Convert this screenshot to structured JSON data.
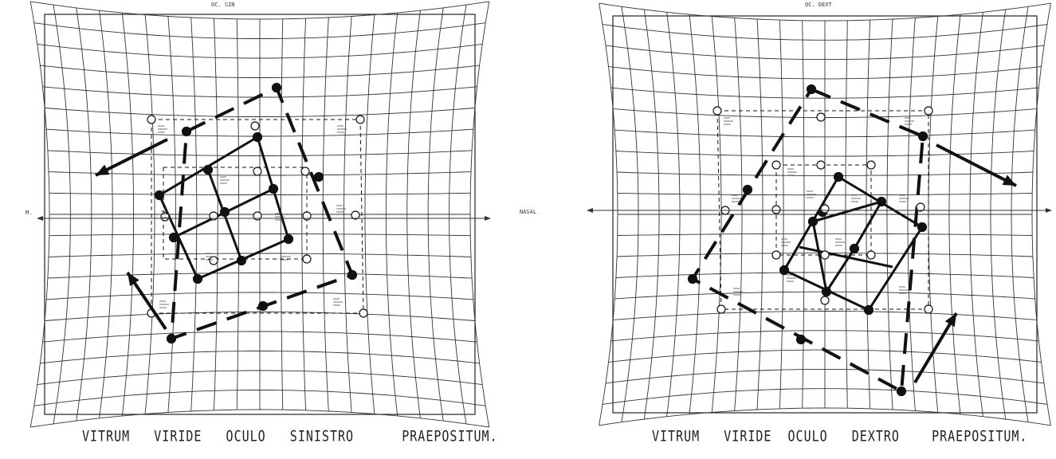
{
  "charts": [
    {
      "id": "left",
      "title": "OC. SIN",
      "caption": "VITRUM   VIRIDE   OCULO   SINISTRO      PRAEPOSITUM.",
      "side_label_left": "M.",
      "side_label_right": "NASAL"
    },
    {
      "id": "right",
      "title": "OC. DEXT",
      "caption": "VITRUM   VIRIDE  OCULO   DEXTRO    PRAEPOSITUM."
    }
  ]
}
